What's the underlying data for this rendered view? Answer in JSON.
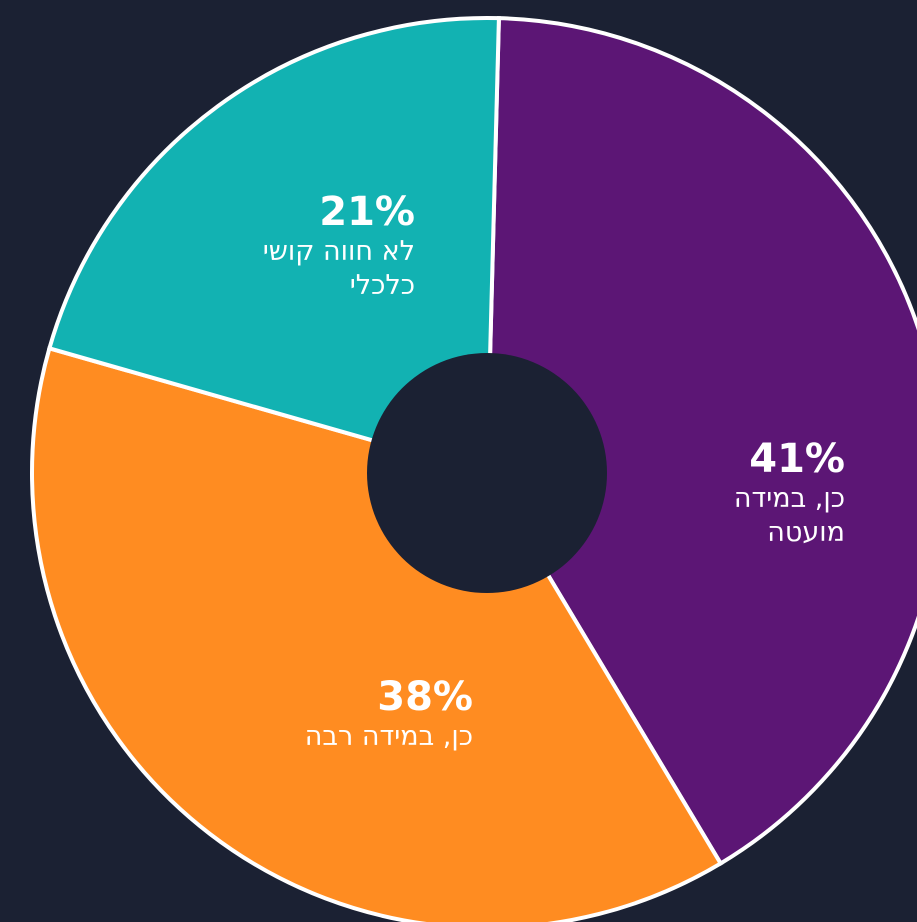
{
  "chart_data": {
    "type": "donut",
    "categories": [
      "כן, במידה מועטה",
      "כן, במידה רבה",
      "לא חווה קושי כלכלי"
    ],
    "values": [
      41,
      38,
      21
    ],
    "value_labels": [
      "41%",
      "38%",
      "21%"
    ],
    "colors": [
      "#5c1675",
      "#ff8c21",
      "#12b2b2"
    ]
  }
}
